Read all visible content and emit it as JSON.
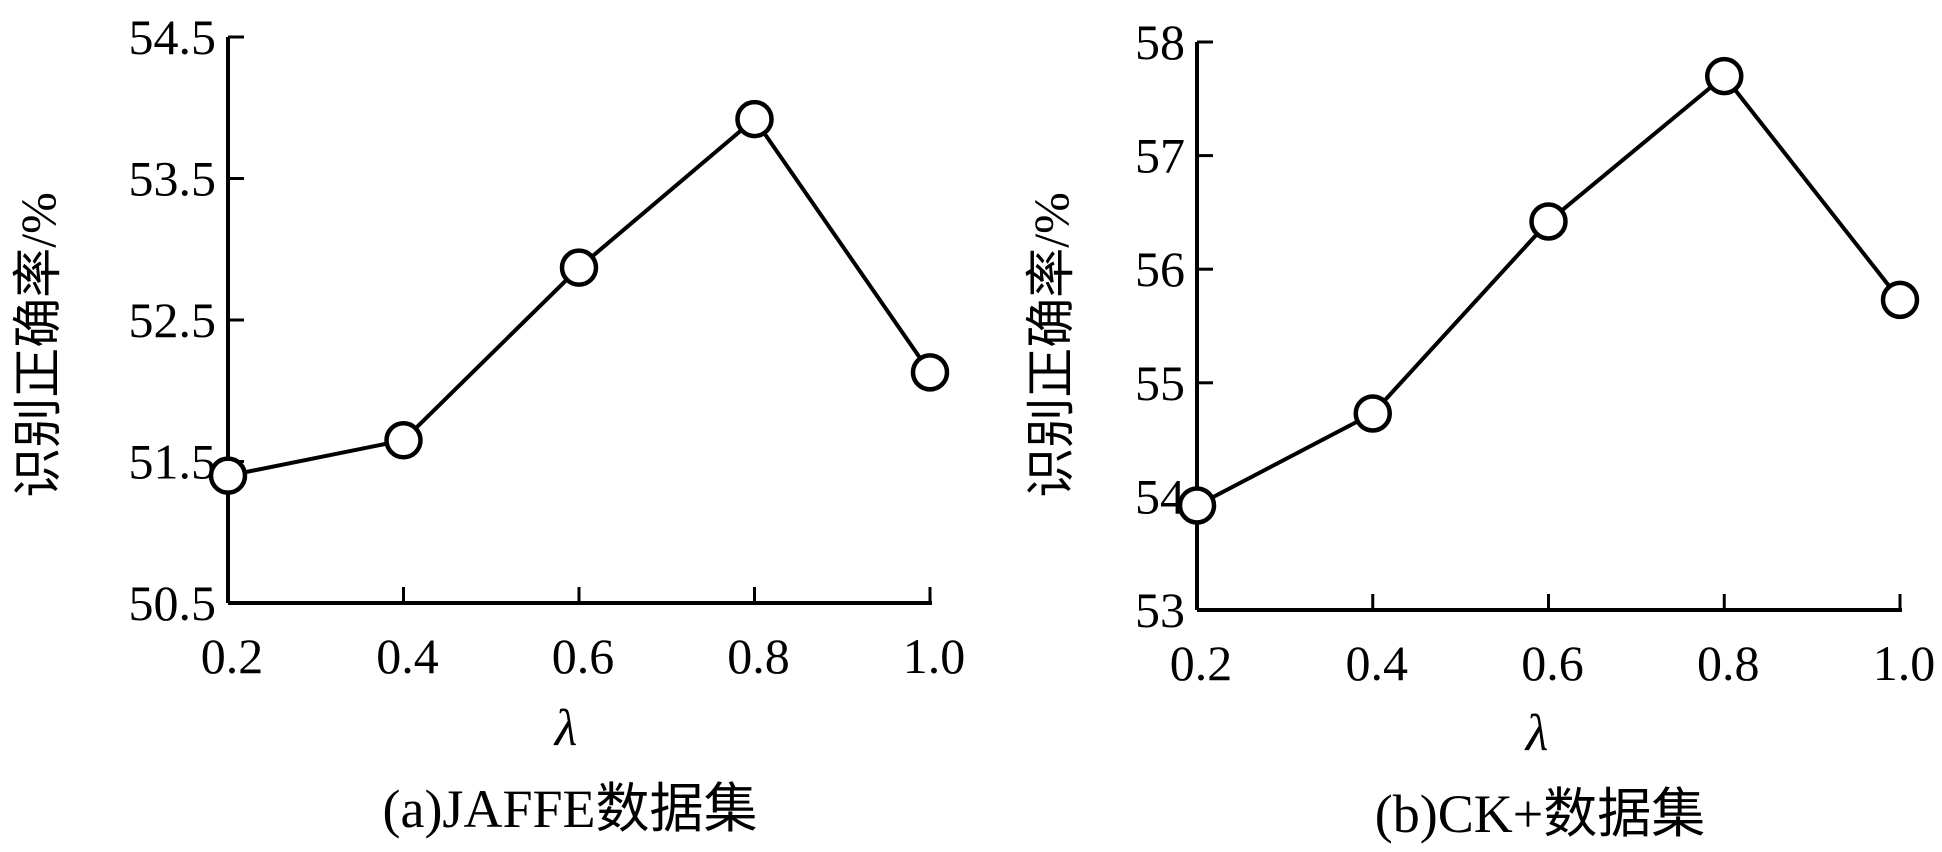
{
  "chart_data": [
    {
      "type": "line",
      "caption": "(a)JAFFE数据集",
      "xlabel": "λ",
      "ylabel": "识别正确率/%",
      "categories": [
        "0.2",
        "0.4",
        "0.6",
        "0.8",
        "1.0"
      ],
      "x": [
        0.2,
        0.4,
        0.6,
        0.8,
        1.0
      ],
      "values": [
        51.4,
        51.65,
        52.87,
        53.92,
        52.13
      ],
      "yticks": [
        "50.5",
        "51.5",
        "52.5",
        "53.5",
        "54.5"
      ],
      "ylim": [
        50.5,
        54.5
      ],
      "marker": "open-circle",
      "line_color": "#000000",
      "grid": false
    },
    {
      "type": "line",
      "caption": "(b)CK+数据集",
      "xlabel": "λ",
      "ylabel": "识别正确率/%",
      "categories": [
        "0.2",
        "0.4",
        "0.6",
        "0.8",
        "1.0"
      ],
      "x": [
        0.2,
        0.4,
        0.6,
        0.8,
        1.0
      ],
      "values": [
        53.92,
        54.73,
        56.42,
        57.7,
        55.73
      ],
      "yticks": [
        "53",
        "54",
        "55",
        "56",
        "57",
        "58"
      ],
      "ylim": [
        53,
        58
      ],
      "marker": "open-circle",
      "line_color": "#000000",
      "grid": false
    }
  ]
}
